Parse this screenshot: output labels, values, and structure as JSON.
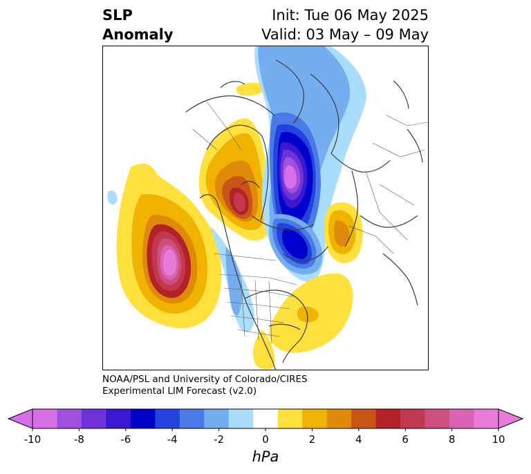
{
  "header": {
    "title_line1": "SLP",
    "title_line2": "Anomaly",
    "init_text": "Init: Tue 06 May 2025",
    "valid_text": "Valid: 03 May – 09 May"
  },
  "credit": {
    "line1": "NOAA/PSL and University of Colorado/CIRES",
    "line2": "Experimental LIM Forecast (v2.0)"
  },
  "colorbar": {
    "unit": "hPa",
    "range": [
      -10,
      10
    ],
    "tick_labels": [
      "-10",
      "-8",
      "-6",
      "-4",
      "-2",
      "0",
      "2",
      "4",
      "6",
      "8",
      "10"
    ],
    "colors": [
      "#d770e8",
      "#a050df",
      "#6d33d8",
      "#3a18d0",
      "#0000cc",
      "#2343dd",
      "#4a7ae6",
      "#74aef1",
      "#aadcfb",
      "#ffffff",
      "#ffe03c",
      "#f0b400",
      "#e08a0a",
      "#c85515",
      "#b22228",
      "#c2384f",
      "#cc4f80",
      "#da63b4",
      "#e87ad8"
    ],
    "under_color": "#d770e8",
    "over_color": "#e87ad8"
  },
  "map": {
    "projection": "north polar stereographic",
    "features": [
      {
        "name": "Pacific high anomaly",
        "sign": "positive",
        "peak_level": 10
      },
      {
        "name": "Canada-Greenland high anomaly",
        "sign": "positive",
        "peak_level": 7
      },
      {
        "name": "Arctic low anomaly",
        "sign": "negative",
        "peak_level": -10
      },
      {
        "name": "Scandinavian low anomaly",
        "sign": "negative",
        "peak_level": -6
      },
      {
        "name": "North Atlantic high anomaly",
        "sign": "positive",
        "peak_level": 3
      },
      {
        "name": "European high anomaly",
        "sign": "positive",
        "peak_level": 4
      }
    ]
  }
}
